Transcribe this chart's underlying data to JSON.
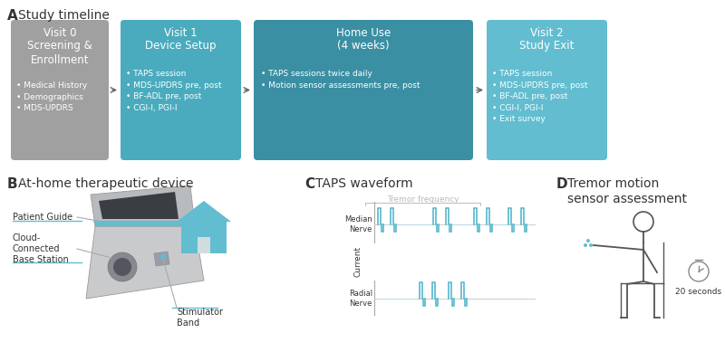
{
  "bg_color": "#ffffff",
  "teal_dark": "#3a8fa3",
  "teal_light": "#62bdd0",
  "teal_medium": "#4aabbe",
  "gray_box": "#a0a0a0",
  "white": "#ffffff",
  "dark_text": "#333333",
  "gray_text": "#999999",
  "section_A": "A",
  "section_B": "B",
  "section_C": "C",
  "section_D": "D",
  "label_A": "Study timeline",
  "label_B": "At-home therapeutic device",
  "label_C": "TAPS waveform",
  "label_D": "Tremor motion\nsensor assessment",
  "visit0_line1": "Visit 0",
  "visit0_line2": "Screening &\nEnrollment",
  "visit0_bullets": "• Medical History\n• Demographics\n• MDS-UPDRS",
  "visit1_line1": "Visit 1",
  "visit1_line2": "Device Setup",
  "visit1_bullets": "• TAPS session\n• MDS-UPDRS pre, post\n• BF-ADL pre, post\n• CGI-I, PGI-I",
  "homeuse_line1": "Home Use",
  "homeuse_line2": "(4 weeks)",
  "homeuse_bullets": "• TAPS sessions twice daily\n• Motion sensor assessments pre, post",
  "visit2_line1": "Visit 2",
  "visit2_line2": "Study Exit",
  "visit2_bullets": "• TAPS session\n• MDS-UPDRS pre, post\n• BF-ADL pre, post\n• CGI-I, PGI-I\n• Exit survey",
  "tremor_freq": "Tremor frequency",
  "current_label": "Current",
  "median_label": "Median\nNerve",
  "radial_label": "Radial\nNerve",
  "seconds_label": "20 seconds",
  "patient_guide": "Patient Guide",
  "cloud_connected": "Cloud-\nConnected\nBase Station",
  "stimulator_band": "Stimulator\nBand"
}
